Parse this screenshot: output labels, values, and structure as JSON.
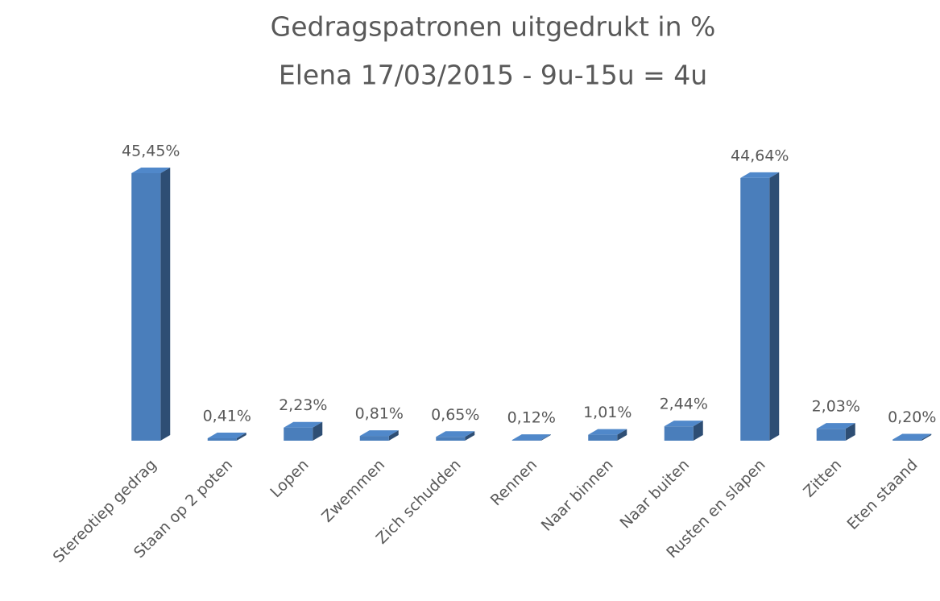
{
  "chart_data": {
    "type": "bar3d",
    "title": "Gedragspatronen uitgedrukt in %",
    "subtitle": "Elena 17/03/2015 - 9u-15u = 4u",
    "categories": [
      "Stereotiep gedrag",
      "Staan op 2 poten",
      "Lopen",
      "Zwemmen",
      "Zich schudden",
      "Rennen",
      "Naar binnen",
      "Naar buiten",
      "Rusten en slapen",
      "Zitten",
      "Eten staand"
    ],
    "values": [
      45.45,
      0.41,
      2.23,
      0.81,
      0.65,
      0.12,
      1.01,
      2.44,
      44.64,
      2.03,
      0.2
    ],
    "value_labels": [
      "45,45%",
      "0,41%",
      "2,23%",
      "0,81%",
      "0,65%",
      "0,12%",
      "1,01%",
      "2,44%",
      "44,64%",
      "2,03%",
      "0,20%"
    ],
    "color": "#4a7ebb"
  }
}
